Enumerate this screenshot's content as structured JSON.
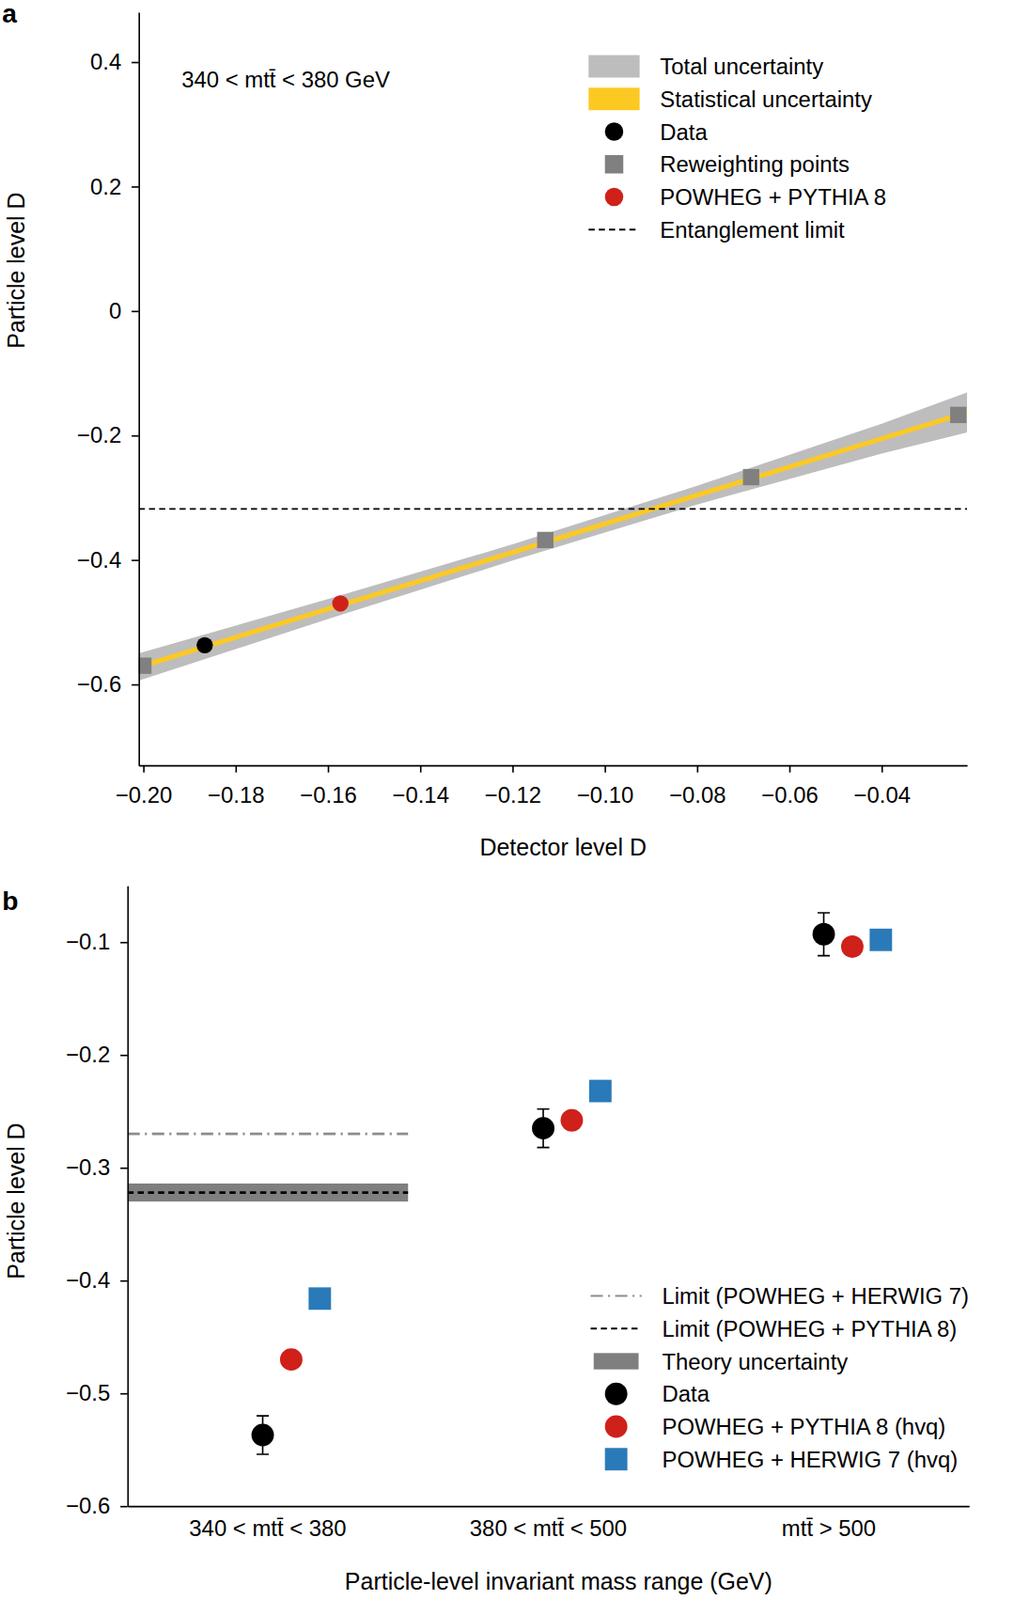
{
  "chart_data": [
    {
      "type": "line",
      "title": "a",
      "annotations": [
        "340 < mtt̄ < 380 GeV"
      ],
      "xlabel": "Detector level D",
      "ylabel": "Particle level D",
      "xlim": [
        -0.201,
        -0.0215
      ],
      "xticks": [
        {
          "value": -0.2,
          "label": "−0.20"
        },
        {
          "value": -0.18,
          "label": "−0.18"
        },
        {
          "value": -0.16,
          "label": "−0.16"
        },
        {
          "value": -0.14,
          "label": "−0.14"
        },
        {
          "value": -0.12,
          "label": "−0.12"
        },
        {
          "value": -0.1,
          "label": "−0.10"
        },
        {
          "value": -0.08,
          "label": "−0.08"
        },
        {
          "value": -0.06,
          "label": "−0.06"
        },
        {
          "value": -0.04,
          "label": "−0.04"
        }
      ],
      "ylim": [
        -0.73,
        0.48
      ],
      "yticks": [
        {
          "value": -0.6,
          "label": "−0.6"
        },
        {
          "value": -0.4,
          "label": "−0.4"
        },
        {
          "value": -0.2,
          "label": "−0.2"
        },
        0,
        0.2,
        0.4
      ],
      "legend": "upper right",
      "series": [
        {
          "name": "Total uncertainty",
          "type": "area",
          "color": "#bdbdbd",
          "x": [
            -0.201,
            -0.16,
            -0.12,
            -0.08,
            -0.04,
            -0.0215
          ],
          "lower": [
            -0.594,
            -0.495,
            -0.401,
            -0.311,
            -0.229,
            -0.195
          ],
          "upper": [
            -0.55,
            -0.463,
            -0.375,
            -0.281,
            -0.181,
            -0.131
          ]
        },
        {
          "name": "Statistical uncertainty",
          "type": "area",
          "color": "#fcc923",
          "x": [
            -0.201,
            -0.16,
            -0.12,
            -0.08,
            -0.04,
            -0.0215
          ],
          "lower": [
            -0.576,
            -0.483,
            -0.392,
            -0.3,
            -0.209,
            -0.167
          ],
          "upper": [
            -0.568,
            -0.475,
            -0.384,
            -0.292,
            -0.201,
            -0.159
          ]
        },
        {
          "name": "Data",
          "type": "scatter",
          "marker": "circle",
          "color": "#000000",
          "x": [
            -0.1867
          ],
          "values": [
            -0.537
          ]
        },
        {
          "name": "Reweighting points",
          "type": "scatter",
          "marker": "square",
          "color": "#808080",
          "x": [
            -0.2,
            -0.1129,
            -0.0683,
            -0.0234
          ],
          "values": [
            -0.57,
            -0.368,
            -0.267,
            -0.167
          ]
        },
        {
          "name": "POWHEG + PYTHIA 8",
          "type": "scatter",
          "marker": "circle",
          "color": "#d0201a",
          "x": [
            -0.1573
          ],
          "values": [
            -0.47
          ]
        },
        {
          "name": "Entanglement limit",
          "type": "hline",
          "line_style": "dashed",
          "color": "#000000",
          "values": [
            -0.318
          ]
        }
      ]
    },
    {
      "type": "scatter",
      "title": "b",
      "xlabel": "Particle-level invariant mass range (GeV)",
      "ylabel": "Particle level D",
      "categories": [
        "340 < mtt̄ < 380",
        "380 < mtt̄ < 500",
        "mtt̄ > 500"
      ],
      "ylim": [
        -0.6,
        -0.05
      ],
      "yticks": [
        {
          "value": -0.6,
          "label": "−0.6"
        },
        {
          "value": -0.5,
          "label": "−0.5"
        },
        {
          "value": -0.4,
          "label": "−0.4"
        },
        {
          "value": -0.3,
          "label": "−0.3"
        },
        {
          "value": -0.2,
          "label": "−0.2"
        },
        {
          "value": -0.1,
          "label": "−0.1"
        }
      ],
      "legend": "lower right",
      "series": [
        {
          "name": "Limit (POWHEG + HERWIG 7)",
          "type": "hline",
          "line_style": "dashdot",
          "color": "#8c8c8c",
          "values": [
            -0.27,
            null,
            null
          ]
        },
        {
          "name": "Limit (POWHEG + PYTHIA 8)",
          "type": "hline",
          "line_style": "dashed",
          "color": "#000000",
          "values": [
            -0.322,
            null,
            null
          ]
        },
        {
          "name": "Theory uncertainty",
          "type": "band",
          "color": "#7f7f7f",
          "lower": [
            -0.33,
            null,
            null
          ],
          "upper": [
            -0.314,
            null,
            null
          ]
        },
        {
          "name": "Data",
          "type": "scatter",
          "marker": "circle",
          "color": "#000000",
          "values": [
            -0.537,
            -0.265,
            -0.093
          ],
          "errors": [
            0.017,
            0.017,
            0.019
          ]
        },
        {
          "name": "POWHEG + PYTHIA 8 (hvq)",
          "type": "scatter",
          "marker": "circle",
          "color": "#d0201a",
          "values": [
            -0.47,
            -0.258,
            -0.104
          ]
        },
        {
          "name": "POWHEG + HERWIG 7 (hvq)",
          "type": "scatter",
          "marker": "square",
          "color": "#2a7ab9",
          "values": [
            -0.416,
            -0.232,
            -0.098
          ]
        }
      ]
    }
  ]
}
